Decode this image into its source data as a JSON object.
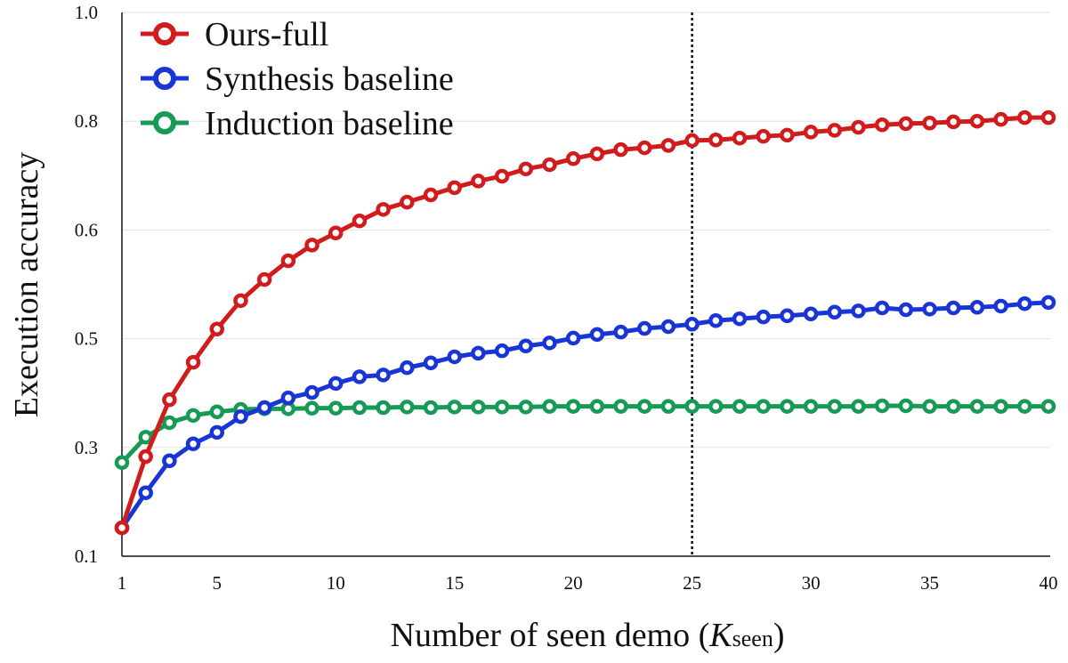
{
  "chart_data": {
    "type": "line",
    "title": "",
    "xlabel": "Number of seen demo (",
    "xlabel_italic": "K",
    "xlabel_sub": "seen",
    "xlabel_close": ")",
    "ylabel": "Execution accuracy",
    "xlim": [
      1,
      40
    ],
    "ylim": [
      0.1,
      1.0
    ],
    "x_ticks": [
      1,
      5,
      10,
      15,
      20,
      25,
      30,
      35,
      40
    ],
    "x_tick_labels": [
      "1",
      "5",
      "10",
      "15",
      "20",
      "25",
      "30",
      "35",
      "40"
    ],
    "y_ticks": [
      0.1,
      0.28,
      0.46,
      0.64,
      0.82,
      1.0
    ],
    "y_tick_labels": [
      "0.1",
      "0.3",
      "0.5",
      "0.6",
      "0.8",
      "1.0"
    ],
    "grid": "horizontal",
    "legend_position": "top-left",
    "vline_x": 25,
    "x": [
      1,
      2,
      3,
      4,
      5,
      6,
      7,
      8,
      9,
      10,
      11,
      12,
      13,
      14,
      15,
      16,
      17,
      18,
      19,
      20,
      21,
      22,
      23,
      24,
      25,
      26,
      27,
      28,
      29,
      30,
      31,
      32,
      33,
      34,
      35,
      36,
      37,
      38,
      39,
      40
    ],
    "series": [
      {
        "name": "Ours-full",
        "color": "#d01c1c",
        "values": [
          0.147,
          0.265,
          0.359,
          0.421,
          0.476,
          0.523,
          0.558,
          0.589,
          0.615,
          0.635,
          0.655,
          0.674,
          0.686,
          0.698,
          0.71,
          0.721,
          0.729,
          0.741,
          0.748,
          0.758,
          0.766,
          0.773,
          0.776,
          0.78,
          0.788,
          0.789,
          0.792,
          0.795,
          0.797,
          0.802,
          0.805,
          0.81,
          0.814,
          0.816,
          0.817,
          0.819,
          0.82,
          0.823,
          0.826,
          0.826
        ]
      },
      {
        "name": "Synthesis baseline",
        "color": "#1a35d6",
        "values": [
          0.147,
          0.205,
          0.258,
          0.286,
          0.305,
          0.331,
          0.346,
          0.362,
          0.371,
          0.386,
          0.397,
          0.4,
          0.412,
          0.42,
          0.43,
          0.436,
          0.44,
          0.448,
          0.453,
          0.461,
          0.467,
          0.471,
          0.477,
          0.48,
          0.484,
          0.49,
          0.493,
          0.496,
          0.498,
          0.501,
          0.504,
          0.506,
          0.511,
          0.508,
          0.509,
          0.511,
          0.512,
          0.514,
          0.518,
          0.52
        ]
      },
      {
        "name": "Induction baseline",
        "color": "#169a55",
        "values": [
          0.255,
          0.297,
          0.321,
          0.333,
          0.339,
          0.343,
          0.344,
          0.344,
          0.345,
          0.345,
          0.346,
          0.346,
          0.347,
          0.346,
          0.347,
          0.347,
          0.347,
          0.347,
          0.348,
          0.348,
          0.348,
          0.348,
          0.348,
          0.348,
          0.348,
          0.348,
          0.348,
          0.348,
          0.348,
          0.348,
          0.348,
          0.348,
          0.349,
          0.349,
          0.348,
          0.348,
          0.348,
          0.348,
          0.348,
          0.348
        ]
      }
    ]
  }
}
